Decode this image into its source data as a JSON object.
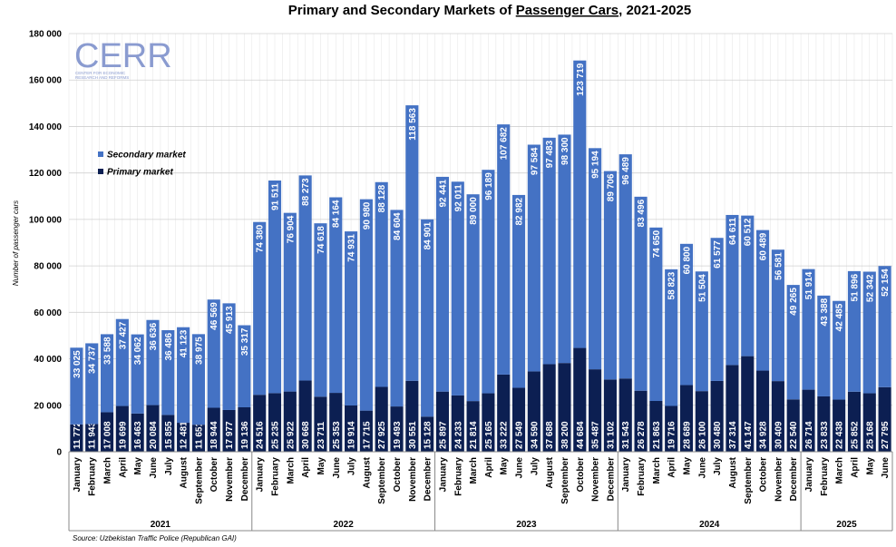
{
  "chart_data": {
    "type": "stacked-bar",
    "title": {
      "before": "Primary and Secondary Markets of ",
      "underlined": "Passenger Cars",
      "after": ", 2021-2025"
    },
    "y_label": "Number of passenger cars",
    "source": "Source: Uzbekistan Traffic Police (Republican GAI)",
    "logo": {
      "name": "CERR",
      "subtitle": [
        "CENTER FOR ECONOMIC",
        "RESEARCH AND REFORMS"
      ]
    },
    "legend_position": "upper-left",
    "grid": true,
    "ylim": [
      0,
      180000
    ],
    "yticks": [
      {
        "value": 0,
        "label": "0"
      },
      {
        "value": 20000,
        "label": "20 000"
      },
      {
        "value": 40000,
        "label": "40 000"
      },
      {
        "value": 60000,
        "label": "60 000"
      },
      {
        "value": 80000,
        "label": "80 000"
      },
      {
        "value": 100000,
        "label": "100 000"
      },
      {
        "value": 120000,
        "label": "120 000"
      },
      {
        "value": 140000,
        "label": "140 000"
      },
      {
        "value": 160000,
        "label": "160 000"
      },
      {
        "value": 180000,
        "label": "180 000"
      }
    ],
    "groups": [
      {
        "label": "2021",
        "categories": [
          "January",
          "February",
          "March",
          "April",
          "May",
          "June",
          "July",
          "August",
          "September",
          "October",
          "November",
          "December"
        ]
      },
      {
        "label": "2022",
        "categories": [
          "January",
          "February",
          "March",
          "April",
          "May",
          "June",
          "July",
          "August",
          "September",
          "October",
          "November",
          "December"
        ]
      },
      {
        "label": "2023",
        "categories": [
          "January",
          "February",
          "March",
          "April",
          "May",
          "June",
          "July",
          "August",
          "September",
          "October",
          "November",
          "December"
        ]
      },
      {
        "label": "2024",
        "categories": [
          "January",
          "February",
          "March",
          "April",
          "May",
          "June",
          "July",
          "August",
          "September",
          "October",
          "November",
          "December"
        ]
      },
      {
        "label": "2025",
        "categories": [
          "January",
          "February",
          "March",
          "April",
          "May",
          "June"
        ]
      }
    ],
    "series": [
      {
        "name": "Secondary market",
        "color": "#4472c4",
        "values": [
          33025,
          34737,
          33588,
          37427,
          34062,
          36636,
          36486,
          41123,
          38975,
          46569,
          45913,
          35317,
          74380,
          91511,
          76904,
          88273,
          74618,
          84164,
          74931,
          90980,
          88128,
          84604,
          118563,
          84901,
          92441,
          92011,
          89000,
          96189,
          107682,
          82982,
          97584,
          97483,
          98300,
          123719,
          95194,
          89706,
          96489,
          83496,
          74650,
          58823,
          60800,
          51504,
          61577,
          64611,
          60512,
          60489,
          56581,
          49265,
          51914,
          43388,
          42485,
          51896,
          52342,
          52154
        ],
        "value_labels": [
          "33 025",
          "34 737",
          "33 588",
          "37 427",
          "34 062",
          "36 636",
          "36 486",
          "41 123",
          "38 975",
          "46 569",
          "45 913",
          "35 317",
          "74 380",
          "91 511",
          "76 904",
          "88 273",
          "74 618",
          "84 164",
          "74 931",
          "90 980",
          "88 128",
          "84 604",
          "118 563",
          "84 901",
          "92 441",
          "92 011",
          "89 000",
          "96 189",
          "107 682",
          "82 982",
          "97 584",
          "97 483",
          "98 300",
          "123 719",
          "95 194",
          "89 706",
          "96 489",
          "83 496",
          "74 650",
          "58 823",
          "60 800",
          "51 504",
          "61 577",
          "64 611",
          "60 512",
          "60 489",
          "56 581",
          "49 265",
          "51 914",
          "43 388",
          "42 485",
          "51 896",
          "52 342",
          "52 154"
        ]
      },
      {
        "name": "Primary market",
        "color": "#0c1f52",
        "values": [
          11772,
          11943,
          17008,
          19699,
          16463,
          20084,
          15855,
          12481,
          11651,
          18944,
          17977,
          19136,
          24516,
          25235,
          25922,
          30668,
          23711,
          25353,
          19914,
          17715,
          27925,
          19493,
          30551,
          15128,
          25897,
          24233,
          21814,
          25165,
          33222,
          27549,
          34590,
          37688,
          38200,
          44684,
          35487,
          31102,
          31543,
          26278,
          21863,
          19716,
          28689,
          26100,
          30480,
          37314,
          41147,
          34928,
          30409,
          22540,
          26714,
          23833,
          22438,
          25852,
          25168,
          27795
        ],
        "value_labels": [
          "11 772",
          "11 943",
          "17 008",
          "19 699",
          "16 463",
          "20 084",
          "15 855",
          "12 481",
          "11 651",
          "18 944",
          "17 977",
          "19 136",
          "24 516",
          "25 235",
          "25 922",
          "30 668",
          "23 711",
          "25 353",
          "19 914",
          "17 715",
          "27 925",
          "19 493",
          "30 551",
          "15 128",
          "25 897",
          "24 233",
          "21 814",
          "25 165",
          "33 222",
          "27 549",
          "34 590",
          "37 688",
          "38 200",
          "44 684",
          "35 487",
          "31 102",
          "31 543",
          "26 278",
          "21 863",
          "19 716",
          "28 689",
          "26 100",
          "30 480",
          "37 314",
          "41 147",
          "34 928",
          "30 409",
          "22 540",
          "26 714",
          "23 833",
          "22 438",
          "25 852",
          "25 168",
          "27 795"
        ]
      }
    ]
  }
}
